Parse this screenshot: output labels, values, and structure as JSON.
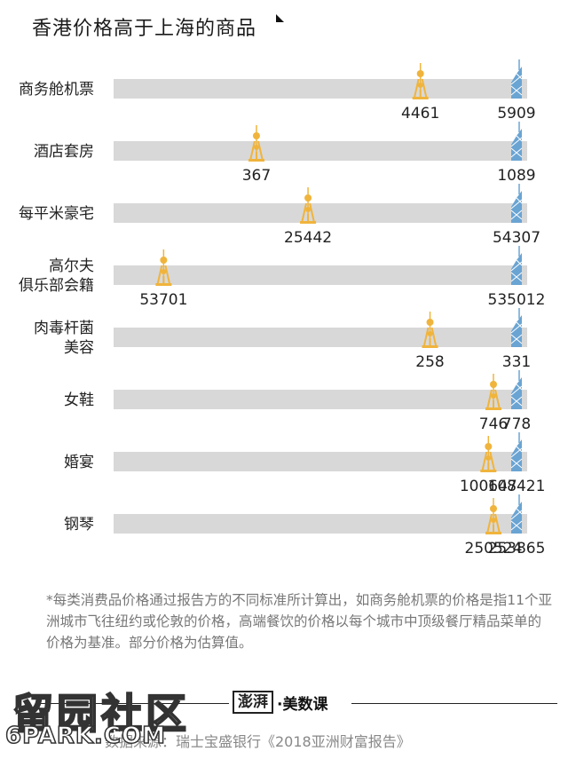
{
  "title": "香港价格高于上海的商品",
  "chart_data": {
    "type": "dot-range",
    "title": "香港价格高于上海的商品",
    "categories": [
      {
        "label": [
          "商务舱机票"
        ],
        "shanghai": 4461,
        "hongkong": 5909
      },
      {
        "label": [
          "酒店套房"
        ],
        "shanghai": 367,
        "hongkong": 1089
      },
      {
        "label": [
          "每平米豪宅"
        ],
        "shanghai": 25442,
        "hongkong": 54307
      },
      {
        "label": [
          "高尔夫",
          "俱乐部会籍"
        ],
        "shanghai": 53701,
        "hongkong": 535012
      },
      {
        "label": [
          "肉毒杆菌",
          "美容"
        ],
        "shanghai": 258,
        "hongkong": 331
      },
      {
        "label": [
          "女鞋"
        ],
        "shanghai": 746,
        "hongkong": 778
      },
      {
        "label": [
          "婚宴"
        ],
        "shanghai": 100647,
        "hongkong": 108421
      },
      {
        "label": [
          "钢琴"
        ],
        "shanghai": 250524,
        "hongkong": 253865
      }
    ],
    "colors": {
      "shanghai": "#f0b43c",
      "hongkong": "#6aa4d3",
      "track": "#d8d8d8"
    }
  },
  "note": "*每类消费品价格通过报告方的不同标准所计算出，如商务舱机票的价格是指11个亚洲城市飞往纽约或伦敦的价格，高端餐饮的价格以每个城市中顶级餐厅精品菜单的价格为基准。部分价格为估算值。",
  "brand": {
    "logo": "澎湃",
    "name": "·美数课"
  },
  "source": "数据来源：瑞士宝盛银行《2018亚洲财富报告》",
  "watermark": {
    "cn": "留园社区",
    "en": "6PARK.COM"
  }
}
